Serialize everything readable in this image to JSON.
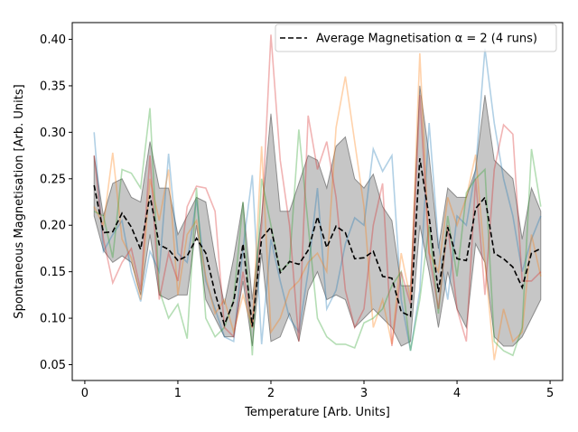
{
  "chart_data": {
    "type": "line",
    "title": "",
    "xlabel": "Temperature [Arb. Units]",
    "ylabel": "Spontaneous Magnetisation [Arb. Units]",
    "xlim": [
      -0.135,
      5.135
    ],
    "ylim": [
      0.033,
      0.418
    ],
    "xticks": [
      0,
      1,
      2,
      3,
      4,
      5
    ],
    "xtick_labels": [
      "0",
      "1",
      "2",
      "3",
      "4",
      "5"
    ],
    "yticks": [
      0.05,
      0.1,
      0.15,
      0.2,
      0.25,
      0.3,
      0.35,
      0.4
    ],
    "ytick_labels": [
      "0.05",
      "0.10",
      "0.15",
      "0.20",
      "0.25",
      "0.30",
      "0.35",
      "0.40"
    ],
    "grid": false,
    "legend": {
      "placement": "top-right",
      "label": "Average Magnetisation α = 2 (4 runs)"
    },
    "x": [
      0.1,
      0.2,
      0.3,
      0.4,
      0.5,
      0.6,
      0.7,
      0.8,
      0.9,
      1.0,
      1.1,
      1.2,
      1.3,
      1.4,
      1.5,
      1.6,
      1.7,
      1.8,
      1.9,
      2.0,
      2.1,
      2.2,
      2.3,
      2.4,
      2.5,
      2.6,
      2.7,
      2.8,
      2.9,
      3.0,
      3.1,
      3.2,
      3.3,
      3.4,
      3.5,
      3.6,
      3.7,
      3.8,
      3.9,
      4.0,
      4.1,
      4.2,
      4.3,
      4.4,
      4.5,
      4.6,
      4.7,
      4.8,
      4.9
    ],
    "series": [
      {
        "color": "#1f77b4",
        "values": [
          0.3,
          0.172,
          0.19,
          0.205,
          0.15,
          0.118,
          0.172,
          0.15,
          0.277,
          0.17,
          0.16,
          0.228,
          0.14,
          0.11,
          0.08,
          0.075,
          0.175,
          0.254,
          0.072,
          0.185,
          0.14,
          0.1,
          0.085,
          0.15,
          0.24,
          0.11,
          0.13,
          0.18,
          0.208,
          0.2,
          0.282,
          0.258,
          0.275,
          0.12,
          0.065,
          0.13,
          0.31,
          0.18,
          0.12,
          0.21,
          0.2,
          0.26,
          0.39,
          0.31,
          0.25,
          0.21,
          0.15,
          0.185,
          0.21
        ]
      },
      {
        "color": "#ff7f0e",
        "values": [
          0.22,
          0.2,
          0.278,
          0.185,
          0.165,
          0.12,
          0.25,
          0.205,
          0.26,
          0.125,
          0.19,
          0.205,
          0.145,
          0.105,
          0.12,
          0.085,
          0.125,
          0.09,
          0.285,
          0.085,
          0.1,
          0.13,
          0.14,
          0.16,
          0.17,
          0.15,
          0.305,
          0.36,
          0.29,
          0.22,
          0.09,
          0.12,
          0.072,
          0.17,
          0.12,
          0.385,
          0.17,
          0.15,
          0.23,
          0.2,
          0.23,
          0.276,
          0.16,
          0.055,
          0.11,
          0.075,
          0.085,
          0.19,
          0.145
        ]
      },
      {
        "color": "#2ca02c",
        "values": [
          0.215,
          0.21,
          0.165,
          0.26,
          0.256,
          0.24,
          0.326,
          0.13,
          0.1,
          0.115,
          0.078,
          0.24,
          0.1,
          0.08,
          0.09,
          0.12,
          0.225,
          0.06,
          0.25,
          0.2,
          0.15,
          0.16,
          0.303,
          0.2,
          0.1,
          0.08,
          0.072,
          0.072,
          0.068,
          0.095,
          0.1,
          0.11,
          0.135,
          0.15,
          0.065,
          0.12,
          0.2,
          0.105,
          0.21,
          0.145,
          0.235,
          0.25,
          0.26,
          0.075,
          0.065,
          0.06,
          0.09,
          0.282,
          0.22
        ]
      },
      {
        "color": "#d62728",
        "values": [
          0.275,
          0.185,
          0.138,
          0.16,
          0.175,
          0.13,
          0.275,
          0.12,
          0.17,
          0.14,
          0.22,
          0.242,
          0.24,
          0.215,
          0.09,
          0.08,
          0.15,
          0.09,
          0.2,
          0.405,
          0.27,
          0.2,
          0.075,
          0.318,
          0.26,
          0.29,
          0.23,
          0.13,
          0.09,
          0.11,
          0.2,
          0.245,
          0.07,
          0.15,
          0.115,
          0.34,
          0.17,
          0.11,
          0.2,
          0.11,
          0.075,
          0.25,
          0.125,
          0.26,
          0.308,
          0.298,
          0.14,
          0.14,
          0.15
        ]
      }
    ],
    "average": {
      "name": "Average Magnetisation α = 2 (4 runs)",
      "color": "#000000",
      "values": [
        0.243,
        0.192,
        0.193,
        0.213,
        0.198,
        0.174,
        0.232,
        0.179,
        0.174,
        0.162,
        0.167,
        0.186,
        0.17,
        0.127,
        0.093,
        0.118,
        0.18,
        0.091,
        0.186,
        0.198,
        0.149,
        0.161,
        0.158,
        0.173,
        0.209,
        0.176,
        0.199,
        0.192,
        0.164,
        0.165,
        0.172,
        0.145,
        0.143,
        0.107,
        0.102,
        0.272,
        0.209,
        0.128,
        0.198,
        0.164,
        0.162,
        0.218,
        0.23,
        0.17,
        0.164,
        0.155,
        0.133,
        0.17,
        0.175
      ]
    },
    "band": {
      "color": "#808080",
      "opacity": 0.45,
      "lower": [
        0.21,
        0.173,
        0.16,
        0.167,
        0.16,
        0.125,
        0.19,
        0.125,
        0.12,
        0.125,
        0.125,
        0.2,
        0.12,
        0.1,
        0.08,
        0.08,
        0.14,
        0.07,
        0.17,
        0.075,
        0.08,
        0.105,
        0.075,
        0.13,
        0.15,
        0.12,
        0.125,
        0.12,
        0.09,
        0.1,
        0.11,
        0.1,
        0.09,
        0.07,
        0.075,
        0.2,
        0.15,
        0.09,
        0.15,
        0.11,
        0.09,
        0.18,
        0.16,
        0.08,
        0.07,
        0.07,
        0.08,
        0.1,
        0.12
      ],
      "upper": [
        0.275,
        0.21,
        0.245,
        0.25,
        0.23,
        0.225,
        0.29,
        0.24,
        0.24,
        0.19,
        0.21,
        0.23,
        0.225,
        0.165,
        0.115,
        0.165,
        0.225,
        0.12,
        0.21,
        0.32,
        0.215,
        0.215,
        0.245,
        0.275,
        0.27,
        0.24,
        0.285,
        0.295,
        0.25,
        0.24,
        0.255,
        0.22,
        0.205,
        0.135,
        0.135,
        0.35,
        0.275,
        0.175,
        0.24,
        0.23,
        0.23,
        0.26,
        0.34,
        0.27,
        0.26,
        0.25,
        0.185,
        0.24,
        0.215
      ]
    }
  }
}
